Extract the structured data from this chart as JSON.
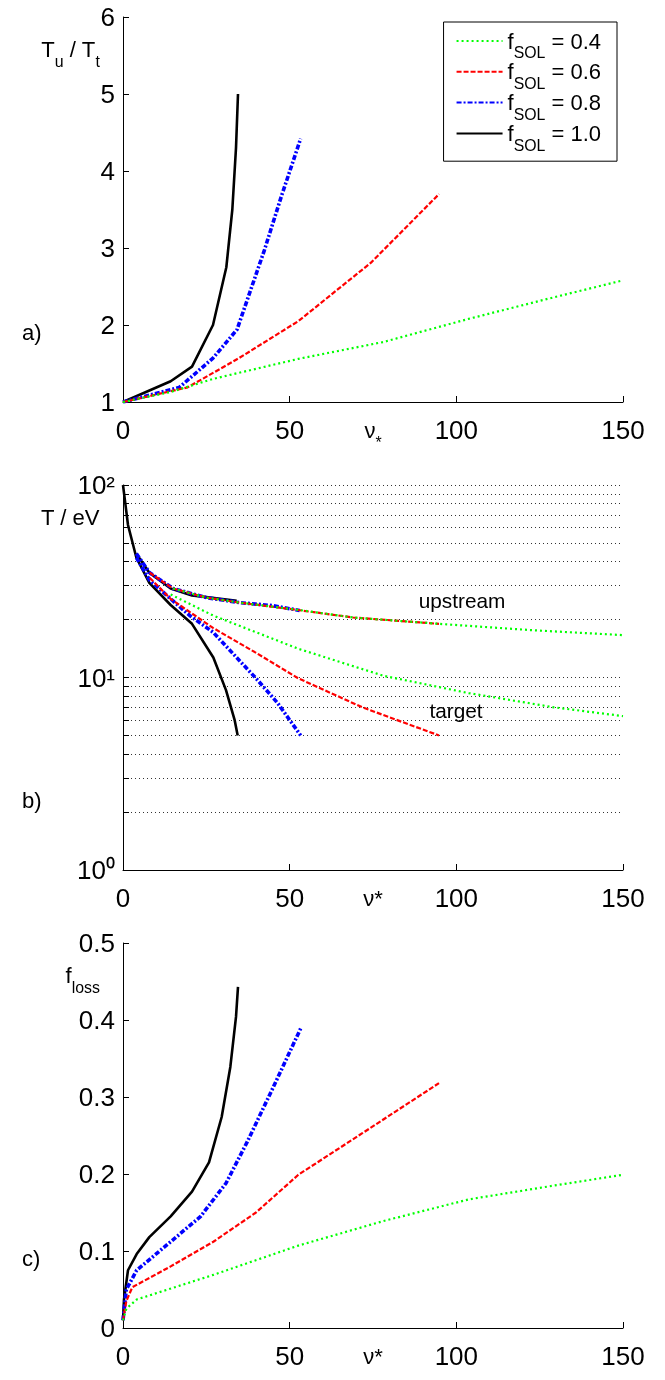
{
  "chart_data": [
    {
      "type": "line",
      "xlabel": "ν$_{*}$",
      "ylabel": "T$_{u}$ / T$_{t}$",
      "xlim": [
        0,
        150
      ],
      "xticks": [
        0,
        50,
        100,
        150
      ],
      "ylim": [
        1,
        6
      ],
      "yticks": [
        1,
        2,
        3,
        4,
        5,
        6
      ],
      "legend": "top right",
      "grid": false,
      "marker": "none",
      "annotations": [
        "a)"
      ],
      "series": [
        {
          "name": "f$_{SOL}$ = 0.4",
          "color": "#00ff00",
          "line_style": "dotted",
          "x": [
            0,
            14.3,
            27,
            52.6,
            78.2,
            103.7,
            129.3,
            150
          ],
          "values": [
            1,
            1.13,
            1.3,
            1.56,
            1.78,
            2.08,
            2.36,
            2.58
          ]
        },
        {
          "name": "f$_{SOL}$ = 0.6",
          "color": "#ff0000",
          "line_style": "dashed",
          "x": [
            0,
            19.4,
            34.8,
            52.6,
            74.4,
            94.8
          ],
          "values": [
            1,
            1.19,
            1.57,
            2.05,
            2.81,
            3.7
          ]
        },
        {
          "name": "f$_{SOL}$ = 0.8",
          "color": "#0000ff",
          "line_style": "dashdot",
          "x": [
            0,
            16.9,
            27,
            34.2,
            42.4,
            47.5,
            53.3
          ],
          "values": [
            1,
            1.19,
            1.57,
            1.94,
            2.97,
            3.67,
            4.42
          ]
        },
        {
          "name": "f$_{SOL}$ = 1.0",
          "color": "#000000",
          "line_style": "solid",
          "x": [
            0,
            14.3,
            20.7,
            27,
            31,
            32.8,
            33.9,
            34.5
          ],
          "values": [
            1,
            1.27,
            1.46,
            2.0,
            2.75,
            3.5,
            4.3,
            5.0
          ]
        }
      ]
    },
    {
      "type": "line",
      "xlabel": "ν*",
      "ylabel": "T / eV",
      "xlim": [
        0,
        150
      ],
      "xticks": [
        0,
        50,
        100,
        150
      ],
      "ylim": [
        1,
        100
      ],
      "log": "y",
      "grid": "y",
      "legend": false,
      "marker": "none",
      "yticks": [
        {
          "value": 1,
          "label": "10⁰"
        },
        {
          "value": 2,
          "label": null
        },
        {
          "value": 3,
          "label": null
        },
        {
          "value": 4,
          "label": null
        },
        {
          "value": 5,
          "label": null
        },
        {
          "value": 6,
          "label": null
        },
        {
          "value": 7,
          "label": null
        },
        {
          "value": 8,
          "label": null
        },
        {
          "value": 9,
          "label": null
        },
        {
          "value": 10,
          "label": "10¹"
        },
        {
          "value": 20,
          "label": null
        },
        {
          "value": 30,
          "label": null
        },
        {
          "value": 40,
          "label": null
        },
        {
          "value": 50,
          "label": null
        },
        {
          "value": 60,
          "label": null
        },
        {
          "value": 70,
          "label": null
        },
        {
          "value": 80,
          "label": null
        },
        {
          "value": 90,
          "label": null
        },
        {
          "value": 100,
          "label": "10²"
        }
      ],
      "annotations": [
        "b)",
        "upstream",
        "target"
      ],
      "series": [
        {
          "color": "#00ff00",
          "line_style": "dotted",
          "x": [
            15,
            25,
            35,
            53,
            69,
            94.8,
            122.9,
            150
          ],
          "values": [
            29,
            26,
            24.5,
            22.4,
            20.5,
            19,
            17.6,
            16.6
          ]
        },
        {
          "color": "#00ff00",
          "line_style": "dotted",
          "x": [
            14.3,
            27,
            52.6,
            78.2,
            103.7,
            129.3,
            150
          ],
          "values": [
            27,
            21,
            14.1,
            10.2,
            8.3,
            7.0,
            6.3
          ]
        },
        {
          "color": "#ff0000",
          "line_style": "dashed",
          "x": [
            8,
            15,
            25,
            35,
            51,
            69,
            94.8
          ],
          "values": [
            35,
            29,
            26,
            24.5,
            22.6,
            20.5,
            19
          ]
        },
        {
          "color": "#ff0000",
          "line_style": "dashed",
          "x": [
            8,
            14.3,
            27,
            40,
            52.6,
            71.8,
            94.8
          ],
          "values": [
            33,
            25.6,
            18.1,
            13.4,
            9.9,
            7.0,
            5.0
          ]
        },
        {
          "color": "#0000ff",
          "line_style": "dashdot",
          "x": [
            4,
            8,
            15,
            25,
            35,
            45,
            53
          ],
          "values": [
            44,
            35,
            29,
            26,
            24.5,
            23.6,
            22.3
          ]
        },
        {
          "color": "#0000ff",
          "line_style": "dashdot",
          "x": [
            4,
            8,
            15,
            20,
            27,
            39.9,
            46.3,
            53.3
          ],
          "values": [
            42,
            32,
            25,
            21,
            17.2,
            9.9,
            7.4,
            5.0
          ]
        },
        {
          "color": "#000000",
          "line_style": "solid",
          "x": [
            4,
            7.9,
            14.3,
            20.7,
            34.1
          ],
          "values": [
            44,
            35,
            29,
            26.7,
            25
          ]
        },
        {
          "color": "#000000",
          "line_style": "solid",
          "x": [
            0,
            1.5,
            4,
            7.9,
            14.3,
            20.7,
            27.1,
            30.9,
            33.5,
            34.4
          ],
          "values": [
            100,
            62,
            42,
            31,
            23.8,
            19,
            12.7,
            8.6,
            6.0,
            5.0
          ]
        }
      ]
    },
    {
      "type": "line",
      "xlabel": "ν*",
      "ylabel": "f$_{loss}$",
      "xlim": [
        0,
        150
      ],
      "xticks": [
        0,
        50,
        100,
        150
      ],
      "ylim": [
        0,
        0.5
      ],
      "yticks": [
        0,
        0.1,
        0.2,
        0.3,
        0.4,
        0.5
      ],
      "grid": false,
      "legend": false,
      "marker": "none",
      "annotations": [
        "c)"
      ],
      "series": [
        {
          "color": "#00ff00",
          "line_style": "dotted",
          "x": [
            0,
            1,
            4.1,
            27.1,
            52.6,
            78.2,
            103.7,
            129.3,
            150
          ],
          "values": [
            0.01,
            0.025,
            0.037,
            0.069,
            0.107,
            0.139,
            0.167,
            0.185,
            0.199
          ]
        },
        {
          "color": "#ff0000",
          "line_style": "dashed",
          "x": [
            0,
            1,
            2.8,
            14.3,
            27.1,
            39.9,
            52.6,
            71.8,
            94.8
          ],
          "values": [
            0.01,
            0.035,
            0.053,
            0.08,
            0.112,
            0.15,
            0.199,
            0.253,
            0.318
          ]
        },
        {
          "color": "#0000ff",
          "line_style": "dashdot",
          "x": [
            0,
            1,
            4.1,
            14.3,
            23.3,
            30.9,
            37.3,
            45,
            53.3
          ],
          "values": [
            0.01,
            0.05,
            0.075,
            0.112,
            0.145,
            0.188,
            0.242,
            0.312,
            0.389
          ]
        },
        {
          "color": "#000000",
          "line_style": "solid",
          "x": [
            0,
            0.3,
            1.5,
            4.1,
            7.9,
            14.3,
            20.7,
            25.8,
            29.6,
            32.2,
            33.9,
            34.5
          ],
          "values": [
            0.01,
            0.037,
            0.075,
            0.096,
            0.118,
            0.145,
            0.177,
            0.215,
            0.274,
            0.339,
            0.404,
            0.443
          ]
        }
      ]
    }
  ]
}
